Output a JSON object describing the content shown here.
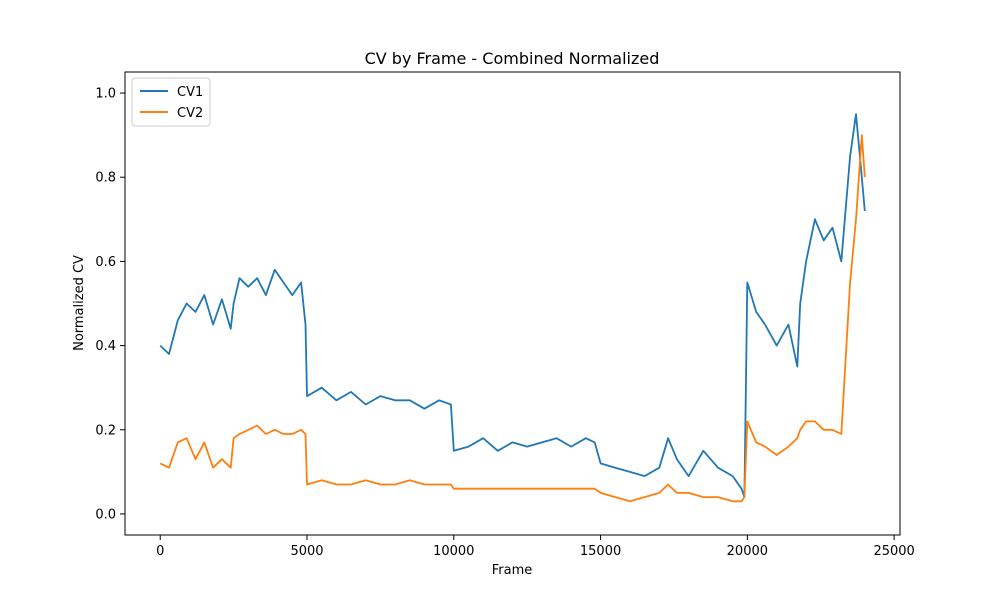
{
  "chart_data": {
    "type": "line",
    "title": "CV by Frame - Combined Normalized",
    "xlabel": "Frame",
    "ylabel": "Normalized CV",
    "xlim": [
      -1200,
      25200
    ],
    "ylim": [
      -0.05,
      1.05
    ],
    "xticks": [
      0,
      5000,
      10000,
      15000,
      20000,
      25000
    ],
    "xtick_labels": [
      "0",
      "5000",
      "10000",
      "15000",
      "20000",
      "25000"
    ],
    "yticks": [
      0.0,
      0.2,
      0.4,
      0.6,
      0.8,
      1.0
    ],
    "ytick_labels": [
      "0.0",
      "0.2",
      "0.4",
      "0.6",
      "0.8",
      "1.0"
    ],
    "grid": false,
    "legend_position": "top-left",
    "series": [
      {
        "name": "CV1",
        "color": "#1f77b4",
        "x": [
          0,
          300,
          600,
          900,
          1200,
          1500,
          1800,
          2100,
          2400,
          2500,
          2700,
          3000,
          3300,
          3600,
          3900,
          4200,
          4500,
          4800,
          4950,
          5000,
          5500,
          6000,
          6500,
          7000,
          7500,
          8000,
          8500,
          9000,
          9500,
          9900,
          10000,
          10500,
          11000,
          11500,
          12000,
          12500,
          13000,
          13500,
          14000,
          14500,
          14800,
          15000,
          15500,
          16000,
          16500,
          17000,
          17300,
          17600,
          18000,
          18500,
          19000,
          19500,
          19800,
          19900,
          20000,
          20300,
          20600,
          21000,
          21400,
          21700,
          21800,
          22000,
          22300,
          22600,
          22900,
          23200,
          23500,
          23700,
          23900,
          24000
        ],
        "y": [
          0.4,
          0.38,
          0.46,
          0.5,
          0.48,
          0.52,
          0.45,
          0.51,
          0.44,
          0.5,
          0.56,
          0.54,
          0.56,
          0.52,
          0.58,
          0.55,
          0.52,
          0.55,
          0.45,
          0.28,
          0.3,
          0.27,
          0.29,
          0.26,
          0.28,
          0.27,
          0.27,
          0.25,
          0.27,
          0.26,
          0.15,
          0.16,
          0.18,
          0.15,
          0.17,
          0.16,
          0.17,
          0.18,
          0.16,
          0.18,
          0.17,
          0.12,
          0.11,
          0.1,
          0.09,
          0.11,
          0.18,
          0.13,
          0.09,
          0.15,
          0.11,
          0.09,
          0.06,
          0.04,
          0.55,
          0.48,
          0.45,
          0.4,
          0.45,
          0.35,
          0.5,
          0.6,
          0.7,
          0.65,
          0.68,
          0.6,
          0.85,
          0.95,
          0.8,
          0.72
        ]
      },
      {
        "name": "CV2",
        "color": "#ff7f0e",
        "x": [
          0,
          300,
          600,
          900,
          1200,
          1500,
          1800,
          2100,
          2400,
          2500,
          2700,
          3000,
          3300,
          3600,
          3900,
          4200,
          4500,
          4800,
          4950,
          5000,
          5500,
          6000,
          6500,
          7000,
          7500,
          8000,
          8500,
          9000,
          9500,
          9900,
          10000,
          10500,
          11000,
          11500,
          12000,
          12500,
          13000,
          13500,
          14000,
          14500,
          14800,
          15000,
          15500,
          16000,
          16500,
          17000,
          17300,
          17600,
          18000,
          18500,
          19000,
          19500,
          19800,
          19900,
          20000,
          20300,
          20600,
          21000,
          21400,
          21700,
          21800,
          22000,
          22300,
          22600,
          22900,
          23200,
          23500,
          23700,
          23900,
          24000
        ],
        "y": [
          0.12,
          0.11,
          0.17,
          0.18,
          0.13,
          0.17,
          0.11,
          0.13,
          0.11,
          0.18,
          0.19,
          0.2,
          0.21,
          0.19,
          0.2,
          0.19,
          0.19,
          0.2,
          0.19,
          0.07,
          0.08,
          0.07,
          0.07,
          0.08,
          0.07,
          0.07,
          0.08,
          0.07,
          0.07,
          0.07,
          0.06,
          0.06,
          0.06,
          0.06,
          0.06,
          0.06,
          0.06,
          0.06,
          0.06,
          0.06,
          0.06,
          0.05,
          0.04,
          0.03,
          0.04,
          0.05,
          0.07,
          0.05,
          0.05,
          0.04,
          0.04,
          0.03,
          0.03,
          0.04,
          0.22,
          0.17,
          0.16,
          0.14,
          0.16,
          0.18,
          0.2,
          0.22,
          0.22,
          0.2,
          0.2,
          0.19,
          0.55,
          0.7,
          0.9,
          0.8
        ]
      }
    ]
  }
}
